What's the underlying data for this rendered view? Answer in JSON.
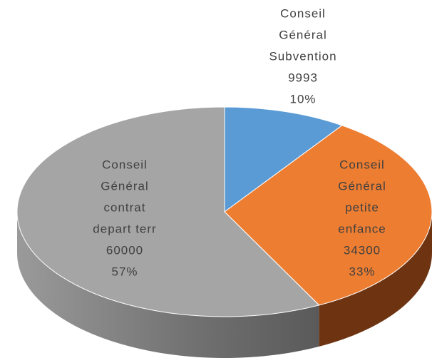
{
  "chart_data": {
    "type": "pie3d",
    "categories": [
      [
        "Conseil",
        "Général",
        "Subvention"
      ],
      [
        "Conseil",
        "Général",
        "petite",
        "enfance"
      ],
      [
        "Conseil",
        "Général",
        "contrat",
        "depart terr"
      ]
    ],
    "values": [
      9993,
      34300,
      60000
    ],
    "percent_labels": [
      "10%",
      "33%",
      "57%"
    ],
    "colors": [
      "#5b9bd5",
      "#ed7d31",
      "#a5a5a5"
    ],
    "side_colors": [
      "#2e5f8c",
      "#6e3412",
      "#6b6b6b"
    ]
  }
}
